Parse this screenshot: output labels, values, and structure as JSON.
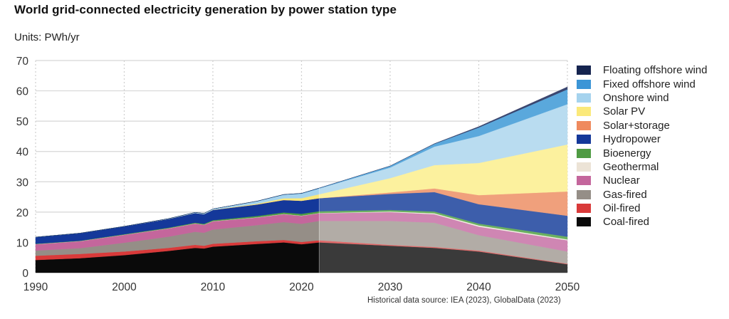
{
  "chart_data": {
    "type": "area",
    "title": "World grid-connected electricity generation by power station type",
    "units_label": "Units: PWh/yr",
    "xlabel": "",
    "ylabel": "PWh/yr",
    "xlim": [
      1990,
      2050
    ],
    "ylim": [
      0,
      70
    ],
    "x_ticks": [
      1990,
      2000,
      2010,
      2020,
      2030,
      2040,
      2050
    ],
    "y_ticks": [
      0,
      10,
      20,
      30,
      40,
      50,
      60,
      70
    ],
    "grid": "horizontal solid, vertical dotted",
    "legend_position": "right",
    "forecast_start_year": 2022,
    "source_note": "Historical data source: IEA (2023), GlobalData (2023)",
    "x": [
      1990,
      1995,
      2000,
      2005,
      2008,
      2009,
      2010,
      2015,
      2018,
      2020,
      2022,
      2030,
      2035,
      2040,
      2050
    ],
    "series": [
      {
        "name": "Coal-fired",
        "color": "#0a0a0a",
        "forecast_color": "#3a3a3a",
        "values": [
          4.2,
          4.8,
          5.8,
          7.2,
          8.2,
          8.0,
          8.6,
          9.5,
          10.0,
          9.4,
          10.0,
          8.9,
          8.2,
          7.0,
          2.8
        ]
      },
      {
        "name": "Oil-fired",
        "color": "#d93a3a",
        "forecast_color": "#e06a6a",
        "values": [
          1.4,
          1.4,
          1.2,
          1.0,
          1.0,
          0.9,
          0.95,
          0.9,
          0.8,
          0.75,
          0.7,
          0.3,
          0.3,
          0.3,
          0.2
        ]
      },
      {
        "name": "Gas-fired",
        "color": "#958e87",
        "forecast_color": "#b2aca6",
        "values": [
          1.7,
          1.9,
          2.9,
          3.7,
          4.3,
          4.3,
          4.7,
          5.3,
          5.9,
          6.0,
          6.4,
          7.9,
          8.0,
          5.1,
          4.0
        ]
      },
      {
        "name": "Nuclear",
        "color": "#c4669c",
        "forecast_color": "#cf86b3",
        "values": [
          2.1,
          2.3,
          2.6,
          2.7,
          2.7,
          2.6,
          2.7,
          2.5,
          2.6,
          2.6,
          2.5,
          2.9,
          2.8,
          2.8,
          3.7
        ]
      },
      {
        "name": "Geothermal",
        "color": "#ece3d6",
        "forecast_color": "#f3ede4",
        "values": [
          0.05,
          0.05,
          0.05,
          0.06,
          0.06,
          0.06,
          0.07,
          0.08,
          0.09,
          0.09,
          0.09,
          0.2,
          0.3,
          0.4,
          0.3
        ]
      },
      {
        "name": "Bioenergy",
        "color": "#4f9b43",
        "forecast_color": "#6bb060",
        "values": [
          0.1,
          0.1,
          0.15,
          0.2,
          0.25,
          0.27,
          0.3,
          0.45,
          0.5,
          0.6,
          0.6,
          0.5,
          0.6,
          0.6,
          0.9
        ]
      },
      {
        "name": "Hydropower",
        "color": "#14389a",
        "forecast_color": "#3d5eab",
        "values": [
          2.2,
          2.5,
          2.6,
          2.9,
          3.2,
          3.2,
          3.4,
          3.8,
          4.1,
          4.3,
          4.3,
          5.3,
          6.4,
          6.4,
          6.9
        ]
      },
      {
        "name": "Solar+storage",
        "color": "#ef8a5e",
        "forecast_color": "#f0a07c",
        "values": [
          0,
          0,
          0,
          0,
          0,
          0,
          0,
          0,
          0,
          0,
          0,
          0.5,
          1.2,
          3.0,
          8.0
        ]
      },
      {
        "name": "Solar PV",
        "color": "#fbe97a",
        "forecast_color": "#fcf19e",
        "values": [
          0,
          0,
          0,
          0,
          0,
          0,
          0.03,
          0.25,
          0.55,
          0.85,
          1.3,
          4.7,
          7.7,
          10.6,
          15.5
        ]
      },
      {
        "name": "Onshore wind",
        "color": "#a5d3ee",
        "forecast_color": "#b9dcf0",
        "values": [
          0,
          0,
          0,
          0.1,
          0.2,
          0.25,
          0.3,
          0.8,
          1.2,
          1.5,
          1.9,
          3.5,
          6.1,
          8.9,
          13.3
        ]
      },
      {
        "name": "Fixed offshore wind",
        "color": "#3b95d6",
        "forecast_color": "#5aa8dc",
        "values": [
          0,
          0,
          0,
          0,
          0,
          0,
          0,
          0.05,
          0.07,
          0.1,
          0.15,
          0.5,
          0.9,
          2.8,
          4.9
        ]
      },
      {
        "name": "Floating offshore wind",
        "color": "#15244f",
        "forecast_color": "#3a4670",
        "values": [
          0,
          0,
          0,
          0,
          0,
          0,
          0,
          0,
          0,
          0,
          0,
          0.05,
          0.1,
          0.3,
          0.8
        ]
      }
    ],
    "legend_order": [
      "Floating offshore wind",
      "Fixed offshore wind",
      "Onshore wind",
      "Solar PV",
      "Solar+storage",
      "Hydropower",
      "Bioenergy",
      "Geothermal",
      "Nuclear",
      "Gas-fired",
      "Oil-fired",
      "Coal-fired"
    ]
  }
}
